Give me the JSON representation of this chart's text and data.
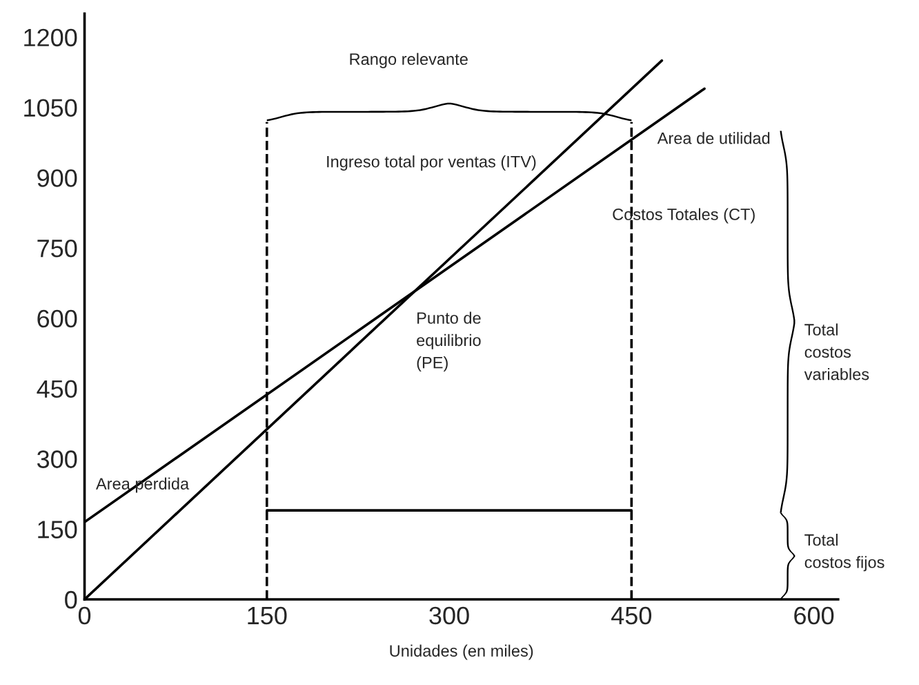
{
  "chart_data": {
    "type": "line",
    "xlabel": "Unidades (en miles)",
    "series": [
      {
        "color": "#000000",
        "x": [
          0,
          475
        ],
        "values": [
          0,
          1150
        ]
      },
      {
        "color": "#000000",
        "x": [
          0,
          510
        ],
        "values": [
          165,
          1090
        ]
      },
      {
        "color": "#000000",
        "x": [
          150,
          450
        ],
        "values": [
          190,
          190
        ]
      }
    ],
    "xlim": [
      0,
      620
    ],
    "xticks": [
      0,
      150,
      300,
      450,
      600
    ],
    "ylim": [
      0,
      1250
    ],
    "yticks": [
      0,
      150,
      300,
      450,
      600,
      750,
      900,
      1050,
      1200
    ],
    "ref_lines": [
      {
        "axis": "x",
        "value": 150,
        "color": "#000000",
        "line_style": "dashed"
      },
      {
        "axis": "x",
        "value": 450,
        "color": "#000000",
        "line_style": "dashed"
      }
    ],
    "annotations": [
      "Rango relevante",
      "Area de utilidad",
      "Ingreso total por ventas (ITV)",
      "Costos Totales (CT)",
      "Punto de\nequilibrio\n(PE)",
      "Area perdida",
      "Total\ncostos\nvariables",
      "Total\ncostos fijos"
    ],
    "grid": false,
    "legend": false,
    "marker": "none",
    "line_style": "solid"
  }
}
